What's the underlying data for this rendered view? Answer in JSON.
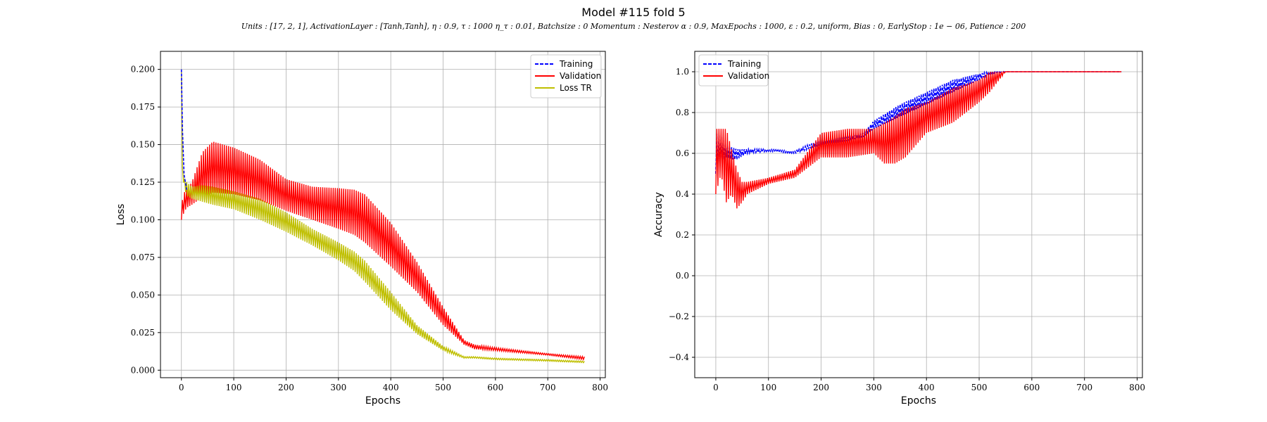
{
  "title": "Model #115 fold 5",
  "subtitle": "Units : [17, 2, 1], ActivationLayer : [Tanh,Tanh], η : 0.9, τ : 1000 η_τ : 0.01, Batchsize : 0 Momentum : Nesterov α : 0.9, MaxEpochs : 1000, ε : 0.2, uniform, Bias : 0, EarlyStop : 1e − 06, Patience : 200",
  "chart_data": [
    {
      "type": "line",
      "xlabel": "Epochs",
      "ylabel": "Loss",
      "xlim": [
        -40,
        810
      ],
      "ylim": [
        -0.005,
        0.212
      ],
      "xticks": [
        0,
        100,
        200,
        300,
        400,
        500,
        600,
        700,
        800
      ],
      "yticks": [
        0.0,
        0.025,
        0.05,
        0.075,
        0.1,
        0.125,
        0.15,
        0.175,
        0.2
      ],
      "ytick_labels": [
        "0.000",
        "0.025",
        "0.050",
        "0.075",
        "0.100",
        "0.125",
        "0.150",
        "0.175",
        "0.200"
      ],
      "grid": true,
      "legend_position": "top-right",
      "series": [
        {
          "name": "Training",
          "color": "#0000ff",
          "style": "dashed",
          "x": [
            0,
            2,
            5,
            10
          ],
          "y": [
            0.2,
            0.16,
            0.13,
            0.12
          ]
        },
        {
          "name": "Validation",
          "color": "#ff0000",
          "style": "band",
          "x": [
            0,
            5,
            10,
            20,
            40,
            60,
            100,
            150,
            200,
            250,
            300,
            330,
            350,
            400,
            450,
            500,
            540,
            560,
            600,
            700,
            770
          ],
          "y_low": [
            0.1,
            0.105,
            0.108,
            0.11,
            0.115,
            0.118,
            0.117,
            0.113,
            0.106,
            0.1,
            0.094,
            0.09,
            0.085,
            0.069,
            0.052,
            0.03,
            0.017,
            0.014,
            0.013,
            0.01,
            0.007
          ],
          "y_high": [
            0.11,
            0.118,
            0.12,
            0.125,
            0.145,
            0.152,
            0.148,
            0.14,
            0.127,
            0.122,
            0.121,
            0.12,
            0.117,
            0.098,
            0.072,
            0.042,
            0.02,
            0.017,
            0.015,
            0.011,
            0.009
          ]
        },
        {
          "name": "Loss TR",
          "color": "#bfbf00",
          "style": "band",
          "x": [
            0,
            2,
            5,
            10,
            20,
            40,
            60,
            100,
            150,
            200,
            250,
            300,
            330,
            350,
            400,
            450,
            500,
            540,
            560,
            600,
            700,
            770
          ],
          "y_low": [
            0.2,
            0.13,
            0.122,
            0.116,
            0.114,
            0.112,
            0.11,
            0.107,
            0.1,
            0.092,
            0.083,
            0.073,
            0.066,
            0.059,
            0.04,
            0.024,
            0.013,
            0.008,
            0.008,
            0.007,
            0.006,
            0.005
          ],
          "y_high": [
            0.202,
            0.135,
            0.128,
            0.125,
            0.122,
            0.123,
            0.122,
            0.119,
            0.114,
            0.105,
            0.094,
            0.085,
            0.079,
            0.073,
            0.052,
            0.03,
            0.016,
            0.009,
            0.009,
            0.008,
            0.007,
            0.006
          ]
        }
      ]
    },
    {
      "type": "line",
      "xlabel": "Epochs",
      "ylabel": "Accuracy",
      "xlim": [
        -40,
        810
      ],
      "ylim": [
        -0.5,
        1.1
      ],
      "xticks": [
        0,
        100,
        200,
        300,
        400,
        500,
        600,
        700,
        800
      ],
      "yticks": [
        -0.4,
        -0.2,
        0.0,
        0.2,
        0.4,
        0.6,
        0.8,
        1.0
      ],
      "ytick_labels": [
        "−0.4",
        "−0.2",
        "0.0",
        "0.2",
        "0.4",
        "0.6",
        "0.8",
        "1.0"
      ],
      "grid": true,
      "legend_position": "top-left",
      "series": [
        {
          "name": "Training",
          "color": "#0000ff",
          "style": "dashed",
          "x": [
            0,
            10,
            20,
            30,
            40,
            60,
            100,
            150,
            200,
            250,
            280,
            300,
            350,
            400,
            450,
            500,
            520,
            550,
            600,
            700,
            770
          ],
          "y_low": [
            0.5,
            0.55,
            0.58,
            0.57,
            0.57,
            0.6,
            0.61,
            0.6,
            0.64,
            0.66,
            0.68,
            0.72,
            0.78,
            0.84,
            0.9,
            0.96,
            0.99,
            1.0,
            1.0,
            1.0,
            1.0
          ],
          "y_high": [
            0.7,
            0.68,
            0.64,
            0.63,
            0.62,
            0.62,
            0.62,
            0.61,
            0.67,
            0.69,
            0.7,
            0.76,
            0.84,
            0.9,
            0.96,
            0.99,
            1.0,
            1.0,
            1.0,
            1.0,
            1.0
          ]
        },
        {
          "name": "Validation",
          "color": "#ff0000",
          "style": "band",
          "x": [
            0,
            10,
            20,
            30,
            40,
            50,
            60,
            100,
            150,
            200,
            250,
            300,
            320,
            340,
            360,
            400,
            450,
            500,
            520,
            550,
            600,
            700,
            770
          ],
          "y_low": [
            0.4,
            0.5,
            0.36,
            0.4,
            0.33,
            0.36,
            0.4,
            0.45,
            0.48,
            0.58,
            0.58,
            0.6,
            0.55,
            0.55,
            0.58,
            0.7,
            0.75,
            0.85,
            0.9,
            1.0,
            1.0,
            1.0,
            1.0
          ],
          "y_high": [
            0.72,
            0.72,
            0.72,
            0.62,
            0.52,
            0.46,
            0.46,
            0.48,
            0.52,
            0.7,
            0.72,
            0.72,
            0.75,
            0.78,
            0.82,
            0.85,
            0.92,
            0.96,
            1.0,
            1.0,
            1.0,
            1.0,
            1.0
          ]
        }
      ]
    }
  ]
}
